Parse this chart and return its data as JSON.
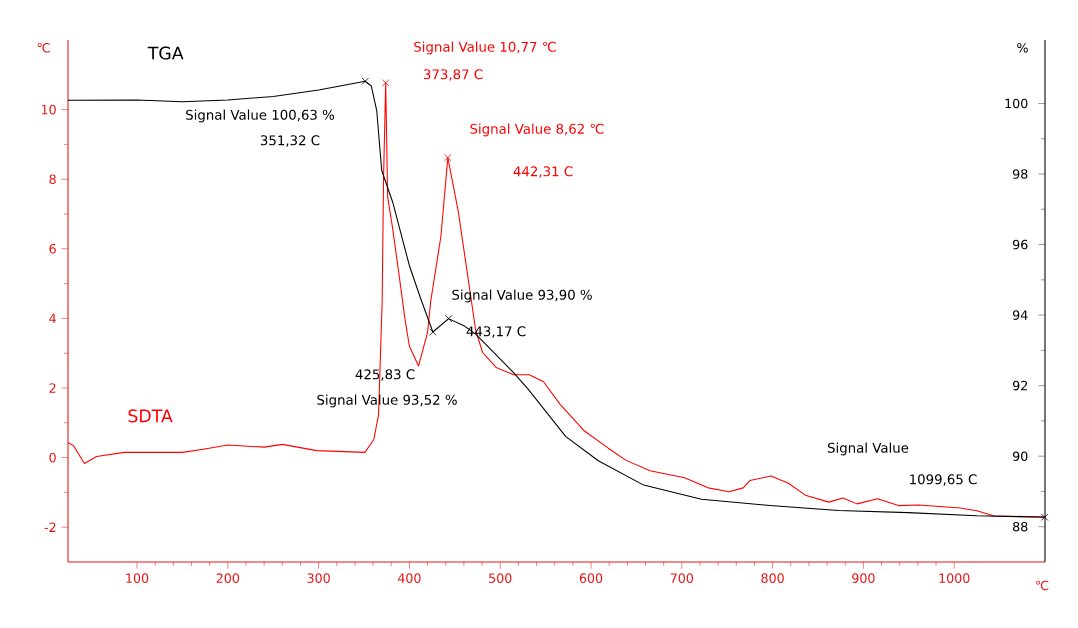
{
  "chart_data": {
    "type": "line",
    "xlabel": "℃",
    "ylabel": "℃",
    "y2label": "%",
    "xlim": [
      24,
      1100
    ],
    "xticks": [
      100,
      200,
      300,
      400,
      500,
      600,
      700,
      800,
      900,
      1000
    ],
    "ylim": [
      -3,
      12
    ],
    "yticks": [
      -2,
      0,
      2,
      4,
      6,
      8,
      10
    ],
    "y2lim": [
      87,
      101.8
    ],
    "y2ticks": [
      88,
      90,
      92,
      94,
      96,
      98,
      100
    ],
    "series": [
      {
        "name": "TGA",
        "color": "#000000",
        "axis": "y2",
        "x": [
          24,
          100,
          150,
          200,
          250,
          300,
          351.32,
          358,
          364,
          369.5,
          381.6,
          400,
          412,
          425.83,
          443.17,
          460,
          473,
          514.7,
          530.7,
          572,
          608,
          658,
          721.6,
          797,
          873,
          949,
          1025,
          1099.65
        ],
        "values": [
          100.09,
          100.1,
          100.05,
          100.1,
          100.2,
          100.38,
          100.63,
          100.5,
          99.8,
          98.1,
          97.2,
          95.4,
          94.5,
          93.52,
          93.9,
          93.7,
          93.46,
          92.37,
          91.9,
          90.56,
          89.87,
          89.18,
          88.78,
          88.6,
          88.46,
          88.4,
          88.31,
          88.27
        ]
      },
      {
        "type": "scatter",
        "color": "#000000",
        "axis": "y2",
        "marker": "cross",
        "x": [
          351.32,
          425.83,
          443.17,
          1099.65
        ],
        "values": [
          100.63,
          93.52,
          93.9,
          88.27
        ]
      },
      {
        "type": "scatter",
        "color": "#ff0000",
        "marker": "cross",
        "x": [
          373.87,
          442.31
        ],
        "values": [
          10.77,
          8.62
        ]
      },
      {
        "name": "SDTA",
        "color": "#ff0000",
        "x": [
          24,
          30,
          42,
          55.5,
          86,
          150,
          173,
          200,
          240,
          260,
          298,
          351,
          360.8,
          366,
          370,
          371.5,
          373.87,
          376,
          381.6,
          389,
          395,
          400,
          410,
          420,
          423.5,
          434.7,
          442.31,
          453.9,
          473,
          480.6,
          495.5,
          514.7,
          532,
          547.7,
          566,
          592,
          619,
          638.7,
          665,
          703,
          729,
          752,
          767.6,
          775,
          798,
          817,
          836,
          862,
          877.5,
          893,
          915.6,
          938.6,
          961,
          1006.6,
          1025,
          1044,
          1093,
          1099.65
        ],
        "values": [
          0.43,
          0.35,
          -0.17,
          0.03,
          0.15,
          0.15,
          0.24,
          0.36,
          0.3,
          0.38,
          0.2,
          0.15,
          0.52,
          1.23,
          4.5,
          8,
          10.77,
          7.5,
          6.57,
          5.17,
          4.0,
          3.2,
          2.63,
          3.6,
          4.5,
          6.36,
          8.62,
          7.06,
          3.66,
          3.02,
          2.59,
          2.38,
          2.38,
          2.18,
          1.53,
          0.78,
          0.27,
          -0.08,
          -0.38,
          -0.58,
          -0.87,
          -0.98,
          -0.87,
          -0.66,
          -0.53,
          -0.73,
          -1.08,
          -1.28,
          -1.16,
          -1.33,
          -1.18,
          -1.38,
          -1.36,
          -1.45,
          -1.53,
          -1.68,
          -1.7,
          -1.7
        ]
      }
    ],
    "annotations": [
      "Signal Value 10,77 ℃",
      "373,87 C",
      "Signal Value 8,62 ℃",
      "442,31 C",
      "Signal Value 100,63 %",
      "351,32 C",
      "425,83 C",
      "Signal Value 93,52 %",
      "Signal Value 93,90 %",
      "443,17 C",
      "Signal Value",
      "1099,65 C"
    ]
  }
}
